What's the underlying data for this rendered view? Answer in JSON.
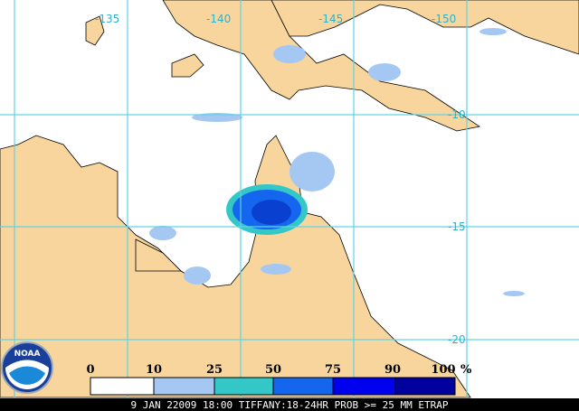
{
  "map": {
    "longitude_labels": [
      "-135",
      "-140",
      "-145",
      "-150"
    ],
    "latitude_labels": [
      "-10",
      "-15",
      "-20"
    ]
  },
  "legend": {
    "labels": [
      "0",
      "10",
      "25",
      "50",
      "75",
      "90",
      "100"
    ],
    "unit": "%"
  },
  "caption": "9 JAN 22009 18:00 TIFFANY:18-24HR PROB >= 25 MM ETRAP"
}
